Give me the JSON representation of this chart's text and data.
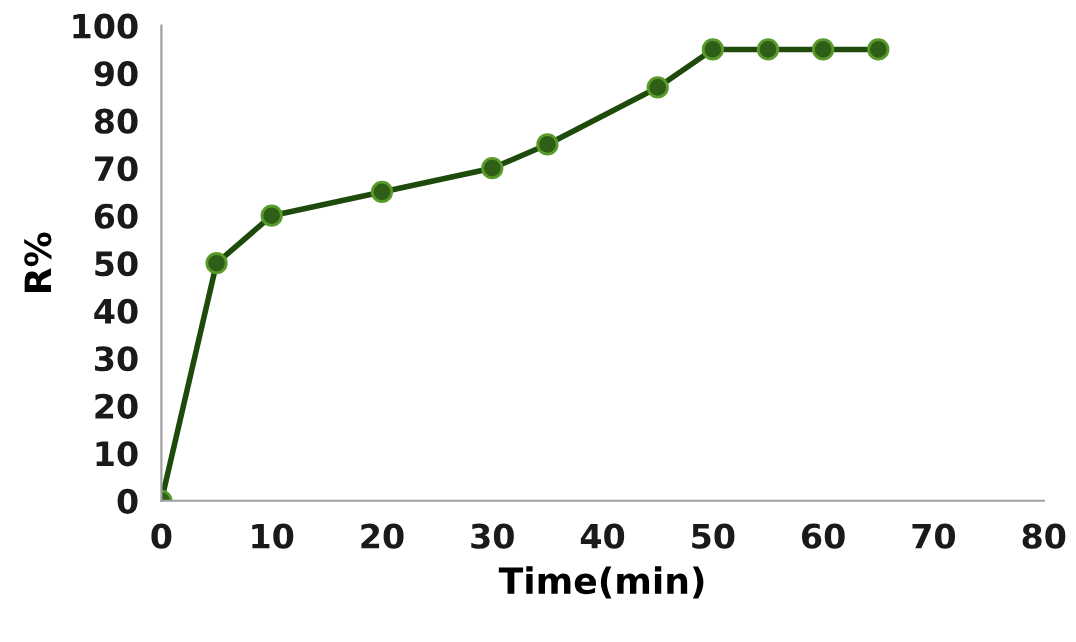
{
  "chart_data": {
    "type": "line",
    "xlabel": "Time(min)",
    "ylabel": "R%",
    "x": [
      0,
      5,
      10,
      20,
      30,
      35,
      45,
      50,
      55,
      60,
      65
    ],
    "series": [
      {
        "color": "#1e4a0c",
        "values": [
          0,
          50,
          60,
          65,
          70,
          75,
          87,
          95,
          95,
          95,
          95
        ]
      }
    ],
    "xlim": [
      0,
      80
    ],
    "xticks": [
      0,
      10,
      20,
      30,
      40,
      50,
      60,
      70,
      80
    ],
    "ylim": [
      0,
      100
    ],
    "yticks": [
      0,
      10,
      20,
      30,
      40,
      50,
      60,
      70,
      80,
      90,
      100
    ],
    "grid": false,
    "legend": false,
    "marker": "circle",
    "line_style": "solid"
  }
}
